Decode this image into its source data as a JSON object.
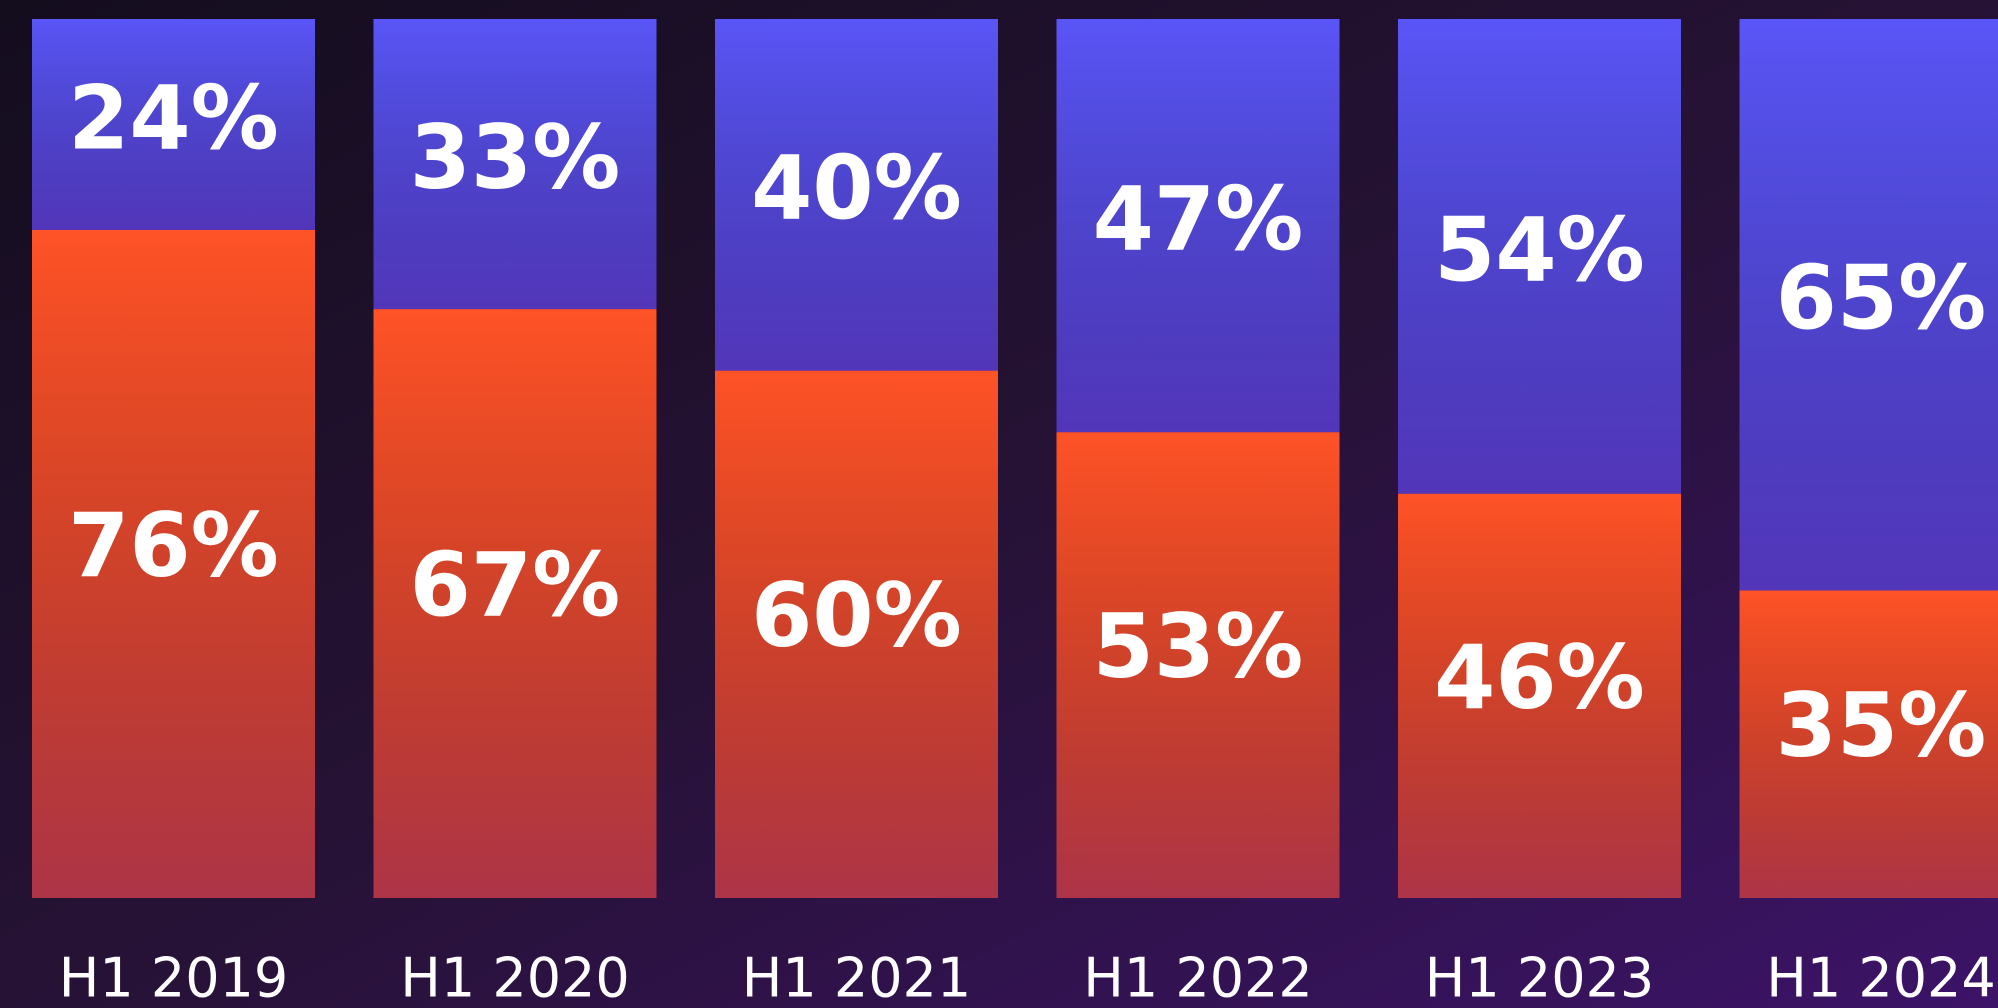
{
  "chart_data": {
    "type": "stacked_bar",
    "categories": [
      "H1 2019",
      "H1 2020",
      "H1 2021",
      "H1 2022",
      "H1 2023",
      "H1 2024"
    ],
    "series": [
      {
        "color": "#ff5227",
        "values": [
          76,
          67,
          60,
          53,
          46,
          35
        ],
        "value_labels": [
          "76%",
          "67%",
          "60%",
          "53%",
          "46%",
          "35%"
        ]
      },
      {
        "color": "#5a55f7",
        "values": [
          24,
          33,
          40,
          47,
          54,
          65
        ],
        "value_labels": [
          "24%",
          "33%",
          "40%",
          "47%",
          "54%",
          "65%"
        ]
      }
    ]
  }
}
